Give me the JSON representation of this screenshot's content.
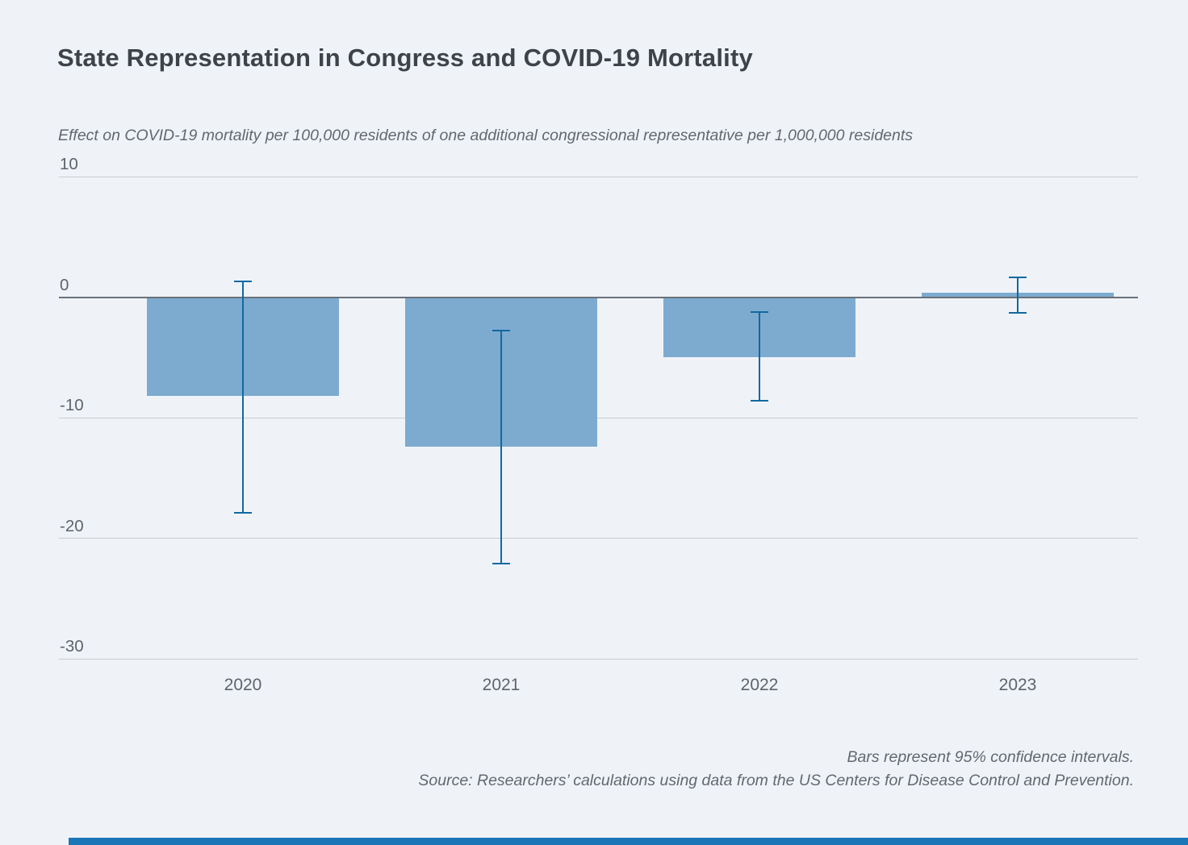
{
  "title": "State Representation in Congress and COVID-19 Mortality",
  "subtitle": "Effect on COVID-19 mortality per 100,000 residents of one additional congressional representative per 1,000,000 residents",
  "notes": {
    "line1": "Bars represent 95% confidence intervals.",
    "line2": "Source: Researchers’ calculations using data from the US Centers for Disease Control and Prevention."
  },
  "colors": {
    "background": "#eff3f8",
    "bar_fill": "#7dabd0",
    "error_bar": "#11699f",
    "zero_line": "#6a7179",
    "gridline": "#c9cdd2",
    "title_text": "#3d4349",
    "muted_text": "#62686e",
    "footer_band": "#1b76b8"
  },
  "chart_data": {
    "type": "bar",
    "title": "State Representation in Congress and COVID-19 Mortality",
    "subtitle_as_ylabel": "Effect on COVID-19 mortality per 100,000 residents of one additional congressional representative per 1,000,000 residents",
    "categories": [
      "2020",
      "2021",
      "2022",
      "2023"
    ],
    "series": [
      {
        "name": "Effect on COVID-19 mortality per 100,000 residents",
        "values": [
          -8.2,
          -12.4,
          -5.0,
          0.4
        ]
      }
    ],
    "error_bars_95ci": {
      "upper": [
        1.4,
        -2.7,
        -1.2,
        1.7
      ],
      "lower": [
        -17.9,
        -22.1,
        -8.6,
        -1.3
      ]
    },
    "xlabel": "",
    "ylabel": "",
    "ylim": [
      -31,
      10
    ],
    "yticks": [
      10,
      0,
      -10,
      -20,
      -30
    ],
    "grid": "horizontal",
    "legend": "none"
  }
}
